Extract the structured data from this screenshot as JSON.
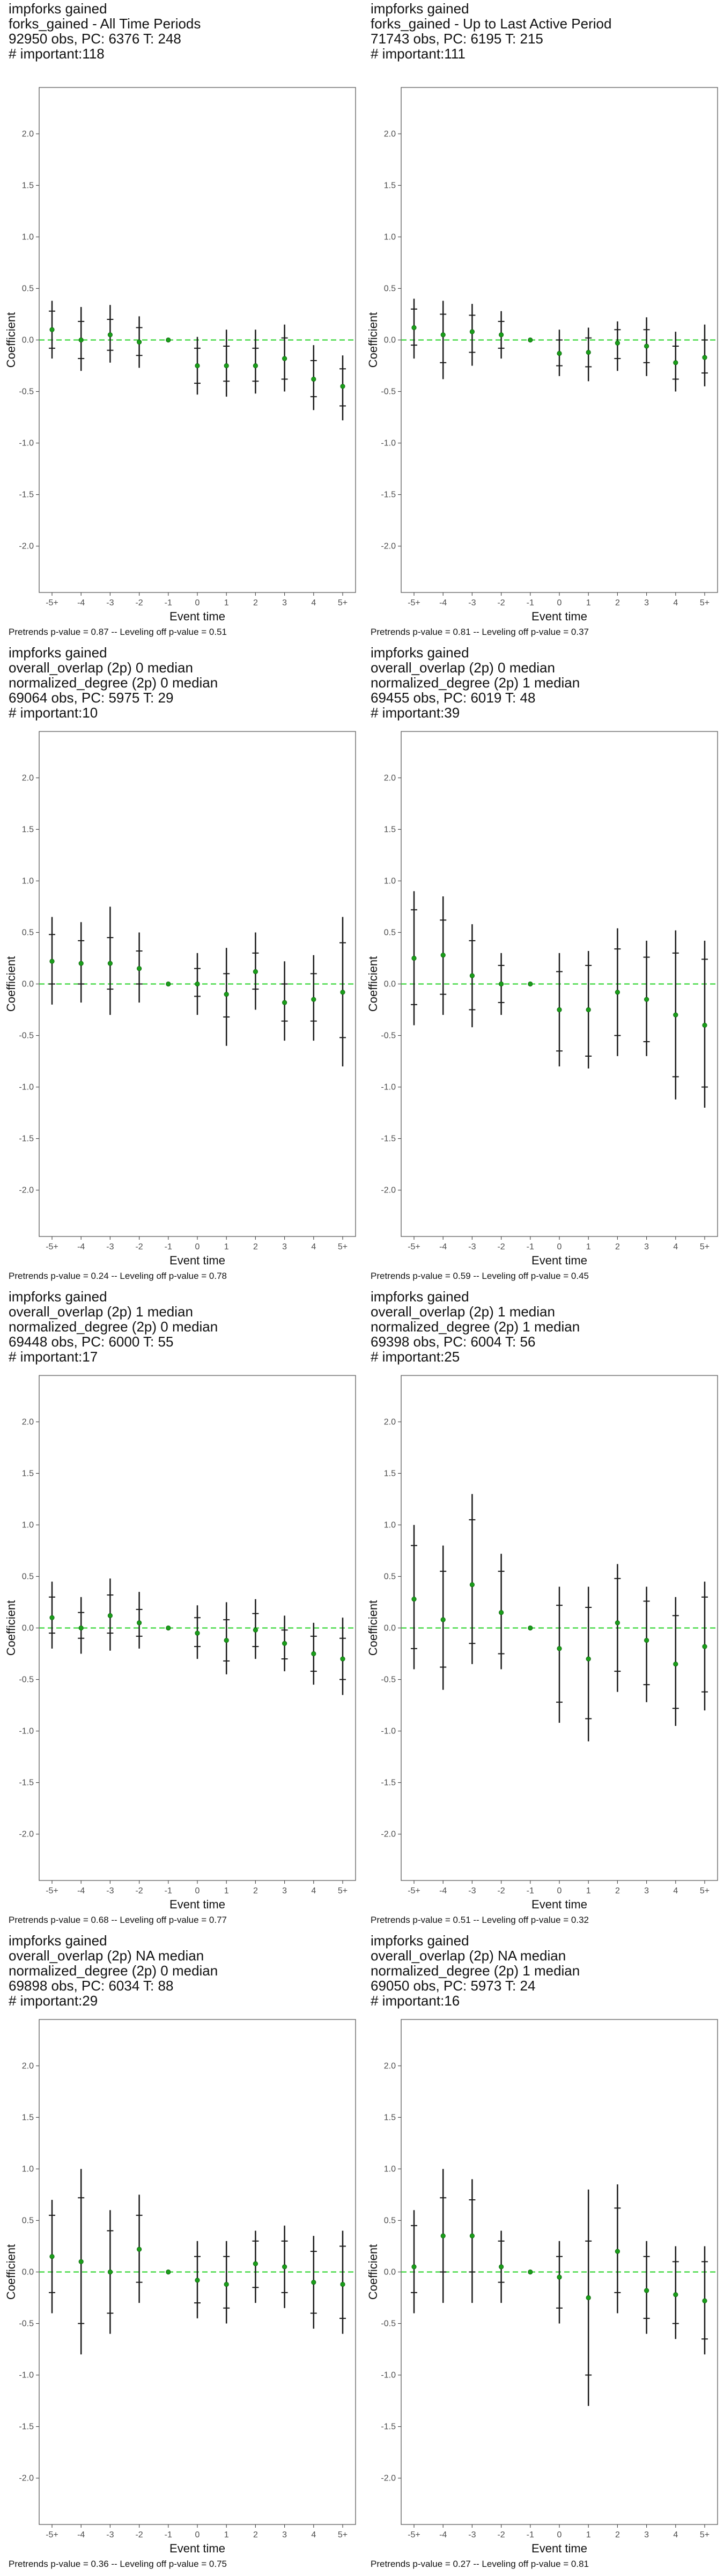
{
  "chart_data": [
    {
      "type": "scatter",
      "title_lines": [
        "impforks gained",
        "forks_gained - All Time Periods",
        "92950 obs, PC: 6376 T: 248",
        "# important:118"
      ],
      "footer": "Pretrends p-value = 0.87 -- Leveling off p-value = 0.51",
      "xlabel": "Event time",
      "ylabel": "Coefficient",
      "categories": [
        "-5+",
        "-4",
        "-3",
        "-2",
        "-1",
        "0",
        "1",
        "2",
        "3",
        "4",
        "5+"
      ],
      "yticks": [
        "-2.0",
        "-1.5",
        "-1.0",
        "-0.5",
        "0.0",
        "0.5",
        "1.0",
        "1.5",
        "2.0"
      ],
      "ylim": [
        -2.45,
        2.45
      ],
      "zero_line": true,
      "estimates": [
        0.1,
        0.0,
        0.05,
        -0.02,
        0.0,
        -0.25,
        -0.25,
        -0.25,
        -0.18,
        -0.38,
        -0.45
      ],
      "ci_outer": [
        [
          -0.18,
          0.38
        ],
        [
          -0.3,
          0.32
        ],
        [
          -0.22,
          0.34
        ],
        [
          -0.27,
          0.23
        ],
        [
          0.0,
          0.0
        ],
        [
          -0.53,
          0.03
        ],
        [
          -0.55,
          0.1
        ],
        [
          -0.52,
          0.1
        ],
        [
          -0.5,
          0.15
        ],
        [
          -0.68,
          -0.05
        ],
        [
          -0.78,
          -0.15
        ]
      ],
      "ci_inner": [
        [
          -0.08,
          0.28
        ],
        [
          -0.18,
          0.18
        ],
        [
          -0.1,
          0.2
        ],
        [
          -0.15,
          0.12
        ],
        [
          0.0,
          0.0
        ],
        [
          -0.42,
          -0.08
        ],
        [
          -0.4,
          -0.06
        ],
        [
          -0.4,
          -0.08
        ],
        [
          -0.38,
          0.02
        ],
        [
          -0.55,
          -0.2
        ],
        [
          -0.64,
          -0.28
        ]
      ],
      "colors": {
        "point": "#1a9e1a",
        "zero": "#39d739",
        "ci": "#1a1a1a"
      }
    },
    {
      "type": "scatter",
      "title_lines": [
        "impforks gained",
        "forks_gained - Up to Last Active Period",
        "71743 obs, PC: 6195 T: 215",
        "# important:111"
      ],
      "footer": "Pretrends p-value = 0.81 -- Leveling off p-value = 0.37",
      "xlabel": "Event time",
      "ylabel": "Coefficient",
      "categories": [
        "-5+",
        "-4",
        "-3",
        "-2",
        "-1",
        "0",
        "1",
        "2",
        "3",
        "4",
        "5+"
      ],
      "yticks": [
        "-2.0",
        "-1.5",
        "-1.0",
        "-0.5",
        "0.0",
        "0.5",
        "1.0",
        "1.5",
        "2.0"
      ],
      "ylim": [
        -2.45,
        2.45
      ],
      "zero_line": true,
      "estimates": [
        0.12,
        0.05,
        0.08,
        0.05,
        0.0,
        -0.13,
        -0.12,
        -0.03,
        -0.06,
        -0.22,
        -0.17
      ],
      "ci_outer": [
        [
          -0.18,
          0.4
        ],
        [
          -0.38,
          0.38
        ],
        [
          -0.25,
          0.35
        ],
        [
          -0.18,
          0.28
        ],
        [
          0.0,
          0.0
        ],
        [
          -0.35,
          0.1
        ],
        [
          -0.4,
          0.12
        ],
        [
          -0.3,
          0.18
        ],
        [
          -0.35,
          0.22
        ],
        [
          -0.5,
          0.08
        ],
        [
          -0.45,
          0.15
        ]
      ],
      "ci_inner": [
        [
          -0.05,
          0.3
        ],
        [
          -0.22,
          0.25
        ],
        [
          -0.12,
          0.24
        ],
        [
          -0.08,
          0.18
        ],
        [
          0.0,
          0.0
        ],
        [
          -0.25,
          0.0
        ],
        [
          -0.26,
          0.02
        ],
        [
          -0.18,
          0.1
        ],
        [
          -0.22,
          0.1
        ],
        [
          -0.38,
          -0.06
        ],
        [
          -0.32,
          0.0
        ]
      ],
      "colors": {
        "point": "#1a9e1a",
        "zero": "#39d739",
        "ci": "#1a1a1a"
      }
    },
    {
      "type": "scatter",
      "title_lines": [
        "impforks gained",
        "overall_overlap (2p) 0 median",
        "normalized_degree (2p) 0 median",
        "69064 obs, PC: 5975 T: 29",
        "# important:10"
      ],
      "footer": "Pretrends p-value = 0.24 -- Leveling off p-value = 0.78",
      "xlabel": "Event time",
      "ylabel": "Coefficient",
      "categories": [
        "-5+",
        "-4",
        "-3",
        "-2",
        "-1",
        "0",
        "1",
        "2",
        "3",
        "4",
        "5+"
      ],
      "yticks": [
        "-2.0",
        "-1.5",
        "-1.0",
        "-0.5",
        "0.0",
        "0.5",
        "1.0",
        "1.5",
        "2.0"
      ],
      "ylim": [
        -2.45,
        2.45
      ],
      "zero_line": true,
      "estimates": [
        0.22,
        0.2,
        0.2,
        0.15,
        0.0,
        0.0,
        -0.1,
        0.12,
        -0.18,
        -0.15,
        -0.08
      ],
      "ci_outer": [
        [
          -0.2,
          0.65
        ],
        [
          -0.18,
          0.6
        ],
        [
          -0.3,
          0.75
        ],
        [
          -0.18,
          0.5
        ],
        [
          0.0,
          0.0
        ],
        [
          -0.3,
          0.3
        ],
        [
          -0.6,
          0.35
        ],
        [
          -0.25,
          0.5
        ],
        [
          -0.55,
          0.22
        ],
        [
          -0.55,
          0.28
        ],
        [
          -0.8,
          0.65
        ]
      ],
      "ci_inner": [
        [
          0.0,
          0.48
        ],
        [
          0.0,
          0.42
        ],
        [
          -0.05,
          0.45
        ],
        [
          0.0,
          0.32
        ],
        [
          0.0,
          0.0
        ],
        [
          -0.12,
          0.15
        ],
        [
          -0.32,
          0.1
        ],
        [
          -0.05,
          0.3
        ],
        [
          -0.36,
          0.0
        ],
        [
          -0.36,
          0.1
        ],
        [
          -0.52,
          0.4
        ]
      ],
      "colors": {
        "point": "#1a9e1a",
        "zero": "#39d739",
        "ci": "#1a1a1a"
      }
    },
    {
      "type": "scatter",
      "title_lines": [
        "impforks gained",
        "overall_overlap (2p) 0 median",
        "normalized_degree (2p) 1 median",
        "69455 obs, PC: 6019 T: 48",
        "# important:39"
      ],
      "footer": "Pretrends p-value = 0.59 -- Leveling off p-value = 0.45",
      "xlabel": "Event time",
      "ylabel": "Coefficient",
      "categories": [
        "-5+",
        "-4",
        "-3",
        "-2",
        "-1",
        "0",
        "1",
        "2",
        "3",
        "4",
        "5+"
      ],
      "yticks": [
        "-2.0",
        "-1.5",
        "-1.0",
        "-0.5",
        "0.0",
        "0.5",
        "1.0",
        "1.5",
        "2.0"
      ],
      "ylim": [
        -2.45,
        2.45
      ],
      "zero_line": true,
      "estimates": [
        0.25,
        0.28,
        0.08,
        0.0,
        0.0,
        -0.25,
        -0.25,
        -0.08,
        -0.15,
        -0.3,
        -0.4
      ],
      "ci_outer": [
        [
          -0.4,
          0.9
        ],
        [
          -0.3,
          0.85
        ],
        [
          -0.42,
          0.58
        ],
        [
          -0.3,
          0.3
        ],
        [
          0.0,
          0.0
        ],
        [
          -0.8,
          0.3
        ],
        [
          -0.82,
          0.32
        ],
        [
          -0.7,
          0.54
        ],
        [
          -0.7,
          0.42
        ],
        [
          -1.12,
          0.52
        ],
        [
          -1.2,
          0.42
        ]
      ],
      "ci_inner": [
        [
          -0.2,
          0.72
        ],
        [
          -0.1,
          0.62
        ],
        [
          -0.25,
          0.42
        ],
        [
          -0.18,
          0.18
        ],
        [
          0.0,
          0.0
        ],
        [
          -0.65,
          0.12
        ],
        [
          -0.7,
          0.18
        ],
        [
          -0.5,
          0.34
        ],
        [
          -0.56,
          0.26
        ],
        [
          -0.9,
          0.3
        ],
        [
          -1.0,
          0.24
        ]
      ],
      "colors": {
        "point": "#1a9e1a",
        "zero": "#39d739",
        "ci": "#1a1a1a"
      }
    },
    {
      "type": "scatter",
      "title_lines": [
        "impforks gained",
        "overall_overlap (2p) 1 median",
        "normalized_degree (2p) 0 median",
        "69448 obs, PC: 6000 T: 55",
        "# important:17"
      ],
      "footer": "Pretrends p-value = 0.68 -- Leveling off p-value = 0.77",
      "xlabel": "Event time",
      "ylabel": "Coefficient",
      "categories": [
        "-5+",
        "-4",
        "-3",
        "-2",
        "-1",
        "0",
        "1",
        "2",
        "3",
        "4",
        "5+"
      ],
      "yticks": [
        "-2.0",
        "-1.5",
        "-1.0",
        "-0.5",
        "0.0",
        "0.5",
        "1.0",
        "1.5",
        "2.0"
      ],
      "ylim": [
        -2.45,
        2.45
      ],
      "zero_line": true,
      "estimates": [
        0.1,
        0.0,
        0.12,
        0.05,
        0.0,
        -0.05,
        -0.12,
        -0.02,
        -0.15,
        -0.25,
        -0.3
      ],
      "ci_outer": [
        [
          -0.2,
          0.45
        ],
        [
          -0.25,
          0.3
        ],
        [
          -0.22,
          0.48
        ],
        [
          -0.2,
          0.35
        ],
        [
          0.0,
          0.0
        ],
        [
          -0.3,
          0.22
        ],
        [
          -0.45,
          0.25
        ],
        [
          -0.3,
          0.28
        ],
        [
          -0.42,
          0.12
        ],
        [
          -0.55,
          0.05
        ],
        [
          -0.65,
          0.1
        ]
      ],
      "ci_inner": [
        [
          -0.05,
          0.3
        ],
        [
          -0.1,
          0.15
        ],
        [
          -0.05,
          0.32
        ],
        [
          -0.08,
          0.18
        ],
        [
          0.0,
          0.0
        ],
        [
          -0.18,
          0.1
        ],
        [
          -0.32,
          0.08
        ],
        [
          -0.18,
          0.14
        ],
        [
          -0.3,
          -0.02
        ],
        [
          -0.42,
          -0.08
        ],
        [
          -0.5,
          -0.1
        ]
      ],
      "colors": {
        "point": "#1a9e1a",
        "zero": "#39d739",
        "ci": "#1a1a1a"
      }
    },
    {
      "type": "scatter",
      "title_lines": [
        "impforks gained",
        "overall_overlap (2p) 1 median",
        "normalized_degree (2p) 1 median",
        "69398 obs, PC: 6004 T: 56",
        "# important:25"
      ],
      "footer": "Pretrends p-value = 0.51 -- Leveling off p-value = 0.32",
      "xlabel": "Event time",
      "ylabel": "Coefficient",
      "categories": [
        "-5+",
        "-4",
        "-3",
        "-2",
        "-1",
        "0",
        "1",
        "2",
        "3",
        "4",
        "5+"
      ],
      "yticks": [
        "-2.0",
        "-1.5",
        "-1.0",
        "-0.5",
        "0.0",
        "0.5",
        "1.0",
        "1.5",
        "2.0"
      ],
      "ylim": [
        -2.45,
        2.45
      ],
      "zero_line": true,
      "estimates": [
        0.28,
        0.08,
        0.42,
        0.15,
        0.0,
        -0.2,
        -0.3,
        0.05,
        -0.12,
        -0.35,
        -0.18
      ],
      "ci_outer": [
        [
          -0.4,
          1.0
        ],
        [
          -0.6,
          0.8
        ],
        [
          -0.35,
          1.3
        ],
        [
          -0.4,
          0.72
        ],
        [
          0.0,
          0.0
        ],
        [
          -0.92,
          0.4
        ],
        [
          -1.1,
          0.4
        ],
        [
          -0.62,
          0.62
        ],
        [
          -0.72,
          0.4
        ],
        [
          -0.95,
          0.3
        ],
        [
          -0.8,
          0.45
        ]
      ],
      "ci_inner": [
        [
          -0.2,
          0.8
        ],
        [
          -0.38,
          0.55
        ],
        [
          -0.15,
          1.05
        ],
        [
          -0.25,
          0.55
        ],
        [
          0.0,
          0.0
        ],
        [
          -0.72,
          0.22
        ],
        [
          -0.88,
          0.2
        ],
        [
          -0.42,
          0.48
        ],
        [
          -0.55,
          0.26
        ],
        [
          -0.78,
          0.12
        ],
        [
          -0.62,
          0.3
        ]
      ],
      "colors": {
        "point": "#1a9e1a",
        "zero": "#39d739",
        "ci": "#1a1a1a"
      }
    },
    {
      "type": "scatter",
      "title_lines": [
        "impforks gained",
        "overall_overlap (2p) NA median",
        "normalized_degree (2p) 0 median",
        "69898 obs, PC: 6034 T: 88",
        "# important:29"
      ],
      "footer": "Pretrends p-value = 0.36 -- Leveling off p-value = 0.75",
      "xlabel": "Event time",
      "ylabel": "Coefficient",
      "categories": [
        "-5+",
        "-4",
        "-3",
        "-2",
        "-1",
        "0",
        "1",
        "2",
        "3",
        "4",
        "5+"
      ],
      "yticks": [
        "-2.0",
        "-1.5",
        "-1.0",
        "-0.5",
        "0.0",
        "0.5",
        "1.0",
        "1.5",
        "2.0"
      ],
      "ylim": [
        -2.45,
        2.45
      ],
      "zero_line": true,
      "estimates": [
        0.15,
        0.1,
        0.0,
        0.22,
        0.0,
        -0.08,
        -0.12,
        0.08,
        0.05,
        -0.1,
        -0.12
      ],
      "ci_outer": [
        [
          -0.4,
          0.7
        ],
        [
          -0.8,
          1.0
        ],
        [
          -0.6,
          0.6
        ],
        [
          -0.3,
          0.75
        ],
        [
          0.0,
          0.0
        ],
        [
          -0.45,
          0.3
        ],
        [
          -0.5,
          0.3
        ],
        [
          -0.3,
          0.4
        ],
        [
          -0.35,
          0.45
        ],
        [
          -0.55,
          0.35
        ],
        [
          -0.6,
          0.4
        ]
      ],
      "ci_inner": [
        [
          -0.2,
          0.55
        ],
        [
          -0.5,
          0.72
        ],
        [
          -0.4,
          0.4
        ],
        [
          -0.1,
          0.55
        ],
        [
          0.0,
          0.0
        ],
        [
          -0.3,
          0.15
        ],
        [
          -0.35,
          0.15
        ],
        [
          -0.15,
          0.3
        ],
        [
          -0.2,
          0.3
        ],
        [
          -0.4,
          0.2
        ],
        [
          -0.45,
          0.25
        ]
      ],
      "colors": {
        "point": "#1a9e1a",
        "zero": "#39d739",
        "ci": "#1a1a1a"
      }
    },
    {
      "type": "scatter",
      "title_lines": [
        "impforks gained",
        "overall_overlap (2p) NA median",
        "normalized_degree (2p) 1 median",
        "69050 obs, PC: 5973 T: 24",
        "# important:16"
      ],
      "footer": "Pretrends p-value = 0.27 -- Leveling off p-value = 0.81",
      "xlabel": "Event time",
      "ylabel": "Coefficient",
      "categories": [
        "-5+",
        "-4",
        "-3",
        "-2",
        "-1",
        "0",
        "1",
        "2",
        "3",
        "4",
        "5+"
      ],
      "yticks": [
        "-2.0",
        "-1.5",
        "-1.0",
        "-0.5",
        "0.0",
        "0.5",
        "1.0",
        "1.5",
        "2.0"
      ],
      "ylim": [
        -2.45,
        2.45
      ],
      "zero_line": true,
      "estimates": [
        0.05,
        0.35,
        0.35,
        0.05,
        0.0,
        -0.05,
        -0.25,
        0.2,
        -0.18,
        -0.22,
        -0.28
      ],
      "ci_outer": [
        [
          -0.4,
          0.6
        ],
        [
          -0.3,
          1.0
        ],
        [
          -0.3,
          0.9
        ],
        [
          -0.3,
          0.4
        ],
        [
          0.0,
          0.0
        ],
        [
          -0.5,
          0.3
        ],
        [
          -1.3,
          0.8
        ],
        [
          -0.4,
          0.85
        ],
        [
          -0.6,
          0.3
        ],
        [
          -0.65,
          0.25
        ],
        [
          -0.8,
          0.25
        ]
      ],
      "ci_inner": [
        [
          -0.2,
          0.45
        ],
        [
          0.0,
          0.72
        ],
        [
          0.0,
          0.7
        ],
        [
          -0.1,
          0.3
        ],
        [
          0.0,
          0.0
        ],
        [
          -0.35,
          0.15
        ],
        [
          -1.0,
          0.3
        ],
        [
          -0.2,
          0.62
        ],
        [
          -0.45,
          0.15
        ],
        [
          -0.5,
          0.1
        ],
        [
          -0.65,
          0.1
        ]
      ],
      "colors": {
        "point": "#1a9e1a",
        "zero": "#39d739",
        "ci": "#1a1a1a"
      }
    }
  ]
}
